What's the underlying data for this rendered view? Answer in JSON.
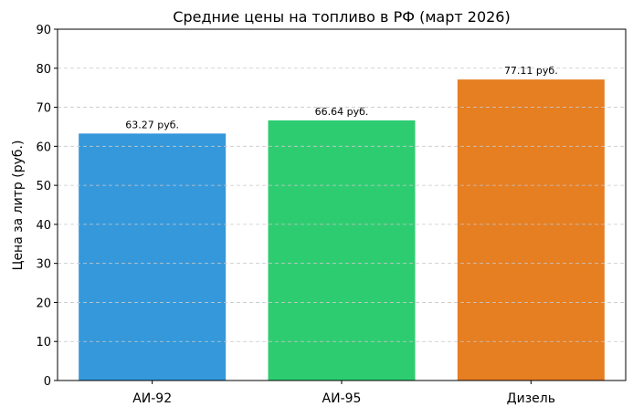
{
  "chart_data": {
    "type": "bar",
    "title": "Средние цены на топливо в РФ (март 2026)",
    "xlabel": "",
    "ylabel": "Цена за литр (руб.)",
    "ylim": [
      0,
      90
    ],
    "yticks": [
      "0",
      "10",
      "20",
      "30",
      "40",
      "50",
      "60",
      "70",
      "80",
      "90"
    ],
    "categories": [
      "АИ-92",
      "АИ-95",
      "Дизель"
    ],
    "values": [
      63.27,
      66.64,
      77.11
    ],
    "data_labels": [
      "63.27 руб.",
      "66.64 руб.",
      "77.11 руб."
    ],
    "colors": [
      "#3498db",
      "#2ecc71",
      "#e67e22"
    ],
    "grid": "y-dashed"
  }
}
